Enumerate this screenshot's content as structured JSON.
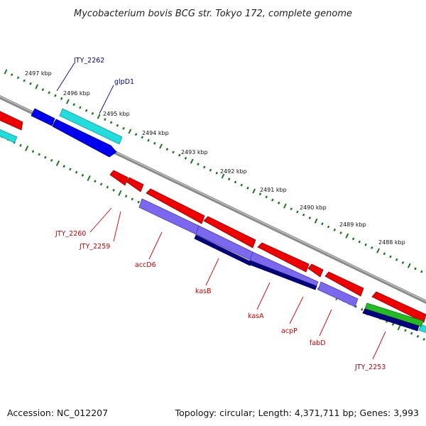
{
  "title": "Mycobacterium bovis BCG str. Tokyo 172, complete genome",
  "footer": {
    "accession": "Accession: NC_012207",
    "summary": "Topology: circular; Length: 4,371,711 bp; Genes: 3,993"
  },
  "colors": {
    "backbone": "#8a8a8a",
    "tick": "#1e7a1e",
    "label_forward": "#00008b",
    "label_reverse": "#cc0000",
    "red": "#ee0000",
    "blue": "#0000ee",
    "cyan": "#22dddd",
    "lavender": "#7b68ee",
    "navy": "#000080",
    "green": "#22bb22"
  },
  "scale": {
    "outer_labels": [
      "2497 kbp",
      "2496 kbp",
      "2495 kbp",
      "2494 kbp",
      "2493 kbp",
      "2492 kbp",
      "2491 kbp",
      "2490 kbp",
      "2489 kbp",
      "2488 kbp"
    ]
  },
  "features": {
    "forward": [
      {
        "color": "blue",
        "lane": "outer"
      },
      {
        "color": "cyan",
        "lane": "outer"
      },
      {
        "color": "cyan",
        "lane": "inner"
      },
      {
        "color": "blue",
        "lane": "inner"
      }
    ],
    "reverse": [
      {
        "color": "red",
        "lane": "outer"
      },
      {
        "color": "red",
        "lane": "outer"
      },
      {
        "color": "red",
        "lane": "outer"
      },
      {
        "color": "red",
        "lane": "outer"
      },
      {
        "color": "red",
        "lane": "outer"
      },
      {
        "color": "red",
        "lane": "outer"
      },
      {
        "color": "red",
        "lane": "outer"
      },
      {
        "color": "red",
        "lane": "outer"
      },
      {
        "color": "lavender",
        "lane": "mid"
      },
      {
        "color": "lavender",
        "lane": "mid"
      },
      {
        "color": "lavender",
        "lane": "mid"
      },
      {
        "color": "lavender",
        "lane": "mid"
      },
      {
        "color": "navy",
        "lane": "inner"
      },
      {
        "color": "navy",
        "lane": "inner"
      },
      {
        "color": "navy",
        "lane": "inner"
      },
      {
        "color": "green",
        "lane": "mid"
      },
      {
        "color": "navy",
        "lane": "inner"
      }
    ]
  },
  "labels": {
    "forward": [
      "JTY_2262",
      "glpD1"
    ],
    "reverse": [
      "JTY_2260",
      "JTY_2259",
      "accD6",
      "kasB",
      "kasA",
      "acpP",
      "fabD",
      "JTY_2253"
    ]
  }
}
